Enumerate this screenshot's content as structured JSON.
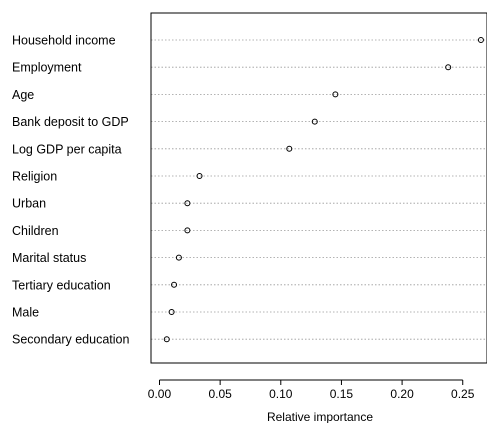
{
  "chart_data": {
    "type": "scatter",
    "subtype": "dotchart",
    "title": "",
    "xlabel": "Relative importance",
    "ylabel": "",
    "xlim": [
      -0.007,
      0.27
    ],
    "xticks": [
      0.0,
      0.05,
      0.1,
      0.15,
      0.2,
      0.25
    ],
    "xtick_labels": [
      "0.00",
      "0.05",
      "0.10",
      "0.15",
      "0.20",
      "0.25"
    ],
    "grid": "dotted horizontal guide lines per category",
    "categories": [
      "Household income",
      "Employment",
      "Age",
      "Bank deposit to GDP",
      "Log GDP per capita",
      "Religion",
      "Urban",
      "Children",
      "Marital status",
      "Tertiary education",
      "Male",
      "Secondary education"
    ],
    "values": [
      0.265,
      0.238,
      0.145,
      0.128,
      0.107,
      0.033,
      0.023,
      0.023,
      0.016,
      0.012,
      0.01,
      0.006
    ],
    "marker": "open circle"
  }
}
